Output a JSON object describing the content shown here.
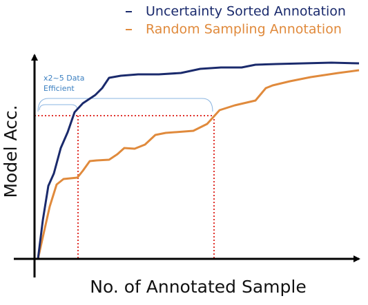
{
  "legend": {
    "items": [
      {
        "label": "Uncertainty Sorted Annotation"
      },
      {
        "label": "Random Sampling Annotation"
      }
    ]
  },
  "axes": {
    "x_label": "No. of Annotated Sample",
    "y_label": "Model Acc."
  },
  "annotation": {
    "lines": [
      "x2~5 Data",
      "Efficient"
    ]
  }
}
